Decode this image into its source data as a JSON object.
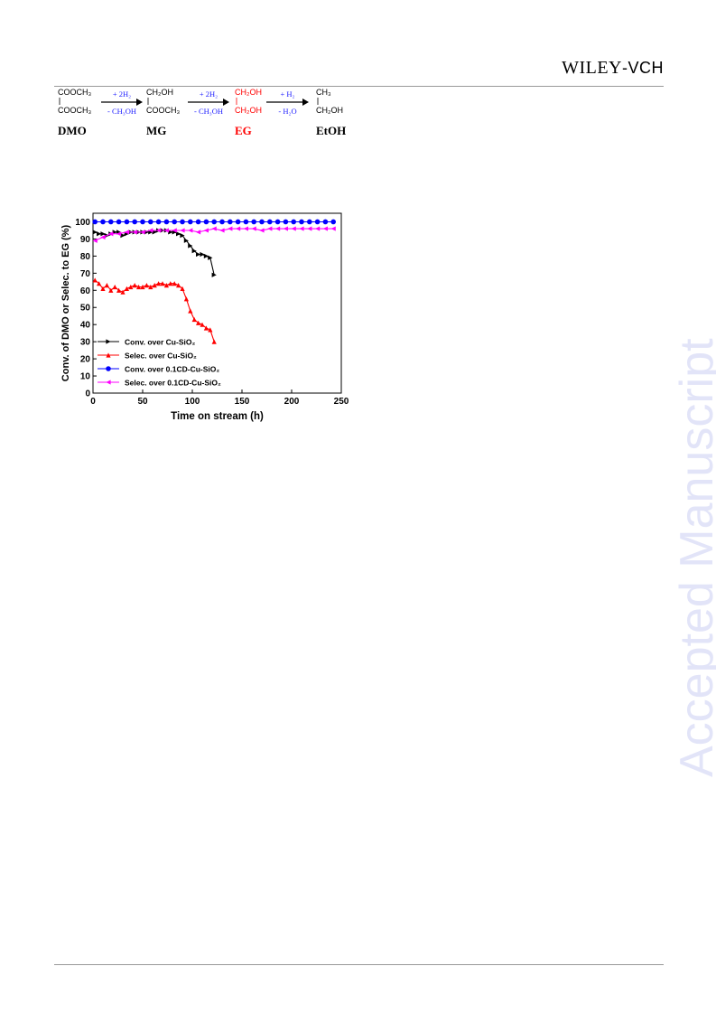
{
  "header": {
    "publisher_main": "WILEY",
    "publisher_sep": "-",
    "publisher_sub": "VCH"
  },
  "watermark": "Accepted Manuscript",
  "scheme": {
    "molecules": [
      {
        "top": "COOCH₃",
        "bottom": "COOCH₃",
        "name": "DMO",
        "color": "#000000"
      },
      {
        "top": "CH₂OH",
        "bottom": "COOCH₃",
        "name": "MG",
        "color": "#000000"
      },
      {
        "top": "CH₂OH",
        "bottom": "CH₂OH",
        "name": "EG",
        "color": "#ff0000"
      },
      {
        "top": "CH₃",
        "bottom": "CH₂OH",
        "name": "EtOH",
        "color": "#000000"
      }
    ],
    "arrows": [
      {
        "above": "+ 2H₂",
        "below": "- CH₃OH"
      },
      {
        "above": "+ 2H₂",
        "below": "- CH₃OH"
      },
      {
        "above": "+ H₂",
        "below": "- H₂O"
      }
    ],
    "reagent_color": "#1a1aff"
  },
  "chart_data": {
    "type": "line",
    "xlabel": "Time on stream (h)",
    "ylabel": "Conv. of DMO or Selec. to EG (%)",
    "xlim": [
      0,
      250
    ],
    "ylim": [
      0,
      105
    ],
    "xticks": [
      0,
      50,
      100,
      150,
      200,
      250
    ],
    "yticks": [
      0,
      10,
      20,
      30,
      40,
      50,
      60,
      70,
      80,
      90,
      100
    ],
    "legend_position": "lower-left",
    "series": [
      {
        "name": "Conv. over Cu-SiO₂",
        "color": "#000000",
        "marker": "triangle-right",
        "x": [
          2,
          6,
          10,
          14,
          18,
          22,
          26,
          30,
          34,
          38,
          42,
          46,
          50,
          54,
          58,
          62,
          66,
          70,
          74,
          78,
          82,
          86,
          90,
          94,
          98,
          102,
          106,
          110,
          114,
          118,
          122
        ],
        "y": [
          94,
          93,
          93,
          92,
          93,
          94,
          94,
          92,
          93,
          94,
          94,
          94,
          94,
          94,
          94,
          94,
          95,
          95,
          95,
          94,
          94,
          93,
          92,
          89,
          86,
          83,
          81,
          81,
          80,
          79,
          69
        ]
      },
      {
        "name": "Selec. over Cu-SiO₂",
        "color": "#ff0000",
        "marker": "triangle-up",
        "x": [
          2,
          6,
          10,
          14,
          18,
          22,
          26,
          30,
          34,
          38,
          42,
          46,
          50,
          54,
          58,
          62,
          66,
          70,
          74,
          78,
          82,
          86,
          90,
          94,
          98,
          102,
          106,
          110,
          114,
          118,
          122
        ],
        "y": [
          66,
          64,
          61,
          63,
          60,
          62,
          60,
          59,
          61,
          62,
          63,
          62,
          62,
          63,
          62,
          63,
          64,
          64,
          63,
          64,
          64,
          63,
          61,
          55,
          48,
          43,
          41,
          40,
          38,
          37,
          30
        ]
      },
      {
        "name": "Conv. over 0.1CD-Cu-SiO₂",
        "color": "#0000ff",
        "marker": "circle",
        "x": [
          2,
          10,
          18,
          26,
          34,
          42,
          50,
          58,
          66,
          74,
          82,
          90,
          98,
          106,
          114,
          122,
          130,
          138,
          146,
          154,
          162,
          170,
          178,
          186,
          194,
          202,
          210,
          218,
          226,
          234,
          242
        ],
        "y": [
          100,
          100,
          100,
          100,
          100,
          100,
          100,
          100,
          100,
          100,
          100,
          100,
          100,
          100,
          100,
          100,
          100,
          100,
          100,
          100,
          100,
          100,
          100,
          100,
          100,
          100,
          100,
          100,
          100,
          100,
          100
        ]
      },
      {
        "name": "Selec. over 0.1CD-Cu-SiO₂",
        "color": "#ff00ff",
        "marker": "triangle-left",
        "x": [
          2,
          10,
          18,
          26,
          34,
          42,
          50,
          58,
          66,
          74,
          82,
          90,
          98,
          106,
          114,
          122,
          130,
          138,
          146,
          154,
          162,
          170,
          178,
          186,
          194,
          202,
          210,
          218,
          226,
          234,
          242
        ],
        "y": [
          89,
          91,
          93,
          93,
          94,
          94,
          94,
          95,
          95,
          95,
          95,
          95,
          95,
          94,
          95,
          96,
          95,
          96,
          96,
          96,
          96,
          95,
          96,
          96,
          96,
          96,
          96,
          96,
          96,
          96,
          96
        ]
      }
    ]
  }
}
